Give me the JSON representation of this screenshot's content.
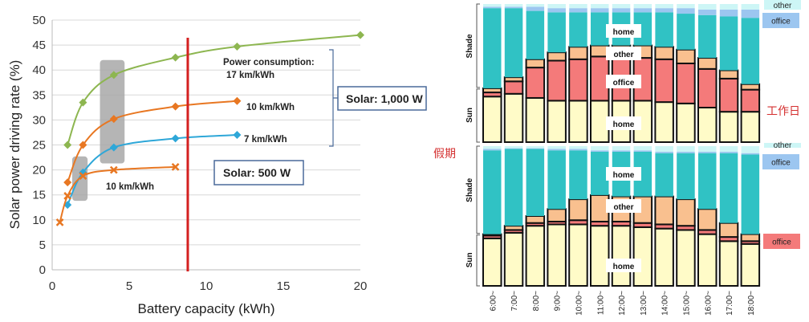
{
  "chart_data": [
    {
      "type": "line",
      "xlabel": "Battery capacity (kWh)",
      "ylabel": "Solar power driving rate (%)",
      "xlim": [
        0,
        20
      ],
      "ylim": [
        0,
        50
      ],
      "xticks": [
        "0",
        "5",
        "10",
        "15",
        "20"
      ],
      "yticks": [
        "0",
        "5",
        "10",
        "15",
        "20",
        "25",
        "30",
        "35",
        "40",
        "45",
        "50"
      ],
      "grid": "horizontal",
      "series": [
        {
          "name": "17 km/kWh",
          "color": "#8DB650",
          "marker": "diamond",
          "x": [
            1,
            2,
            4,
            8,
            12,
            20
          ],
          "y": [
            25,
            33.5,
            39,
            42.5,
            44.7,
            47
          ]
        },
        {
          "name": "10 km/kWh",
          "color": "#E87722",
          "marker": "diamond",
          "x": [
            1,
            2,
            4,
            8,
            12
          ],
          "y": [
            17.5,
            25,
            30.2,
            32.7,
            33.8
          ]
        },
        {
          "name": "7 km/kWh",
          "color": "#2EA7D8",
          "marker": "diamond",
          "x": [
            1,
            2,
            4,
            8,
            12
          ],
          "y": [
            13,
            19.5,
            24.5,
            26.3,
            27
          ]
        },
        {
          "name": "10 km/kWh",
          "color": "#E87722",
          "marker": "x",
          "x": [
            0.5,
            1,
            2,
            4,
            8
          ],
          "y": [
            9.5,
            14.8,
            18.8,
            20,
            20.6
          ]
        }
      ],
      "vline": {
        "x": 8.8,
        "color": "#D42020"
      },
      "highlights": [
        {
          "x": [
            1.3,
            2.3
          ],
          "y": [
            13.8,
            22.7
          ]
        },
        {
          "x": [
            3.1,
            4.7
          ],
          "y": [
            21.3,
            42
          ]
        }
      ],
      "annotations": {
        "power_consumption": "Power consumption:",
        "label_17": "17 km/kWh",
        "label_10_high": "10 km/kWh",
        "label_7": "7 km/kWh",
        "label_10_low": "10 km/kWh",
        "solar_1000": "Solar: 1,000 W",
        "solar_500": "Solar: 500 W"
      }
    },
    {
      "type": "bar",
      "stacked": true,
      "categories": [
        "6:00~",
        "7:00~",
        "8:00~",
        "9:00~",
        "10:00~",
        "11:00~",
        "12:00~",
        "13:00~",
        "14:00~",
        "15:00~",
        "16:00~",
        "17:00~",
        "18:00~"
      ],
      "segments": [
        "Sun home",
        "Sun office",
        "Sun other",
        "Shade home",
        "Shade office",
        "Shade other"
      ],
      "colors": [
        "#FFFBC8",
        "#F47A7A",
        "#F9C08F",
        "#30C2C4",
        "#9CC6F0",
        "#CDF6F6"
      ],
      "axis_labels": {
        "shade": "Shade",
        "sun": "Sun"
      },
      "inner_labels": {
        "home_shade": "home",
        "other": "other",
        "office": "office",
        "home_sun": "home"
      },
      "panels": [
        {
          "name": "工作日",
          "legend": {
            "other": "other",
            "office": "office"
          },
          "values": [
            [
              33,
              3,
              3,
              58,
              1,
              2
            ],
            [
              35,
              9,
              3,
              50,
              1,
              2
            ],
            [
              32,
              22,
              6,
              35,
              3,
              2
            ],
            [
              30,
              29,
              6,
              29,
              3,
              3
            ],
            [
              30,
              30,
              9,
              25,
              3,
              3
            ],
            [
              30,
              32,
              8,
              24,
              3,
              3
            ],
            [
              30,
              32,
              8,
              24,
              3,
              3
            ],
            [
              30,
              31,
              9,
              24,
              3,
              3
            ],
            [
              29,
              31,
              9,
              25,
              3,
              3
            ],
            [
              28,
              29,
              10,
              26,
              4,
              3
            ],
            [
              25,
              28,
              8,
              31,
              4,
              4
            ],
            [
              22,
              24,
              6,
              39,
              5,
              4
            ],
            [
              22,
              16,
              4,
              48,
              6,
              4
            ]
          ]
        },
        {
          "name": "假期",
          "legend": {
            "other": "other",
            "office": "office",
            "office_sun": "office"
          },
          "values": [
            [
              34,
              2,
              1,
              60,
              1,
              2
            ],
            [
              38,
              2,
              3,
              55,
              0.5,
              1.5
            ],
            [
              43,
              2,
              5,
              48,
              0.5,
              1.5
            ],
            [
              44,
              2,
              9,
              42,
              1,
              2
            ],
            [
              44,
              3,
              15,
              35,
              1,
              2
            ],
            [
              43,
              3,
              19,
              31,
              1,
              3
            ],
            [
              43,
              3,
              18,
              32,
              1,
              3
            ],
            [
              42,
              3,
              19,
              32,
              1,
              3
            ],
            [
              41,
              3,
              20,
              31,
              1,
              4
            ],
            [
              40,
              3,
              19,
              33,
              1,
              4
            ],
            [
              37,
              3,
              15,
              40,
              1,
              4
            ],
            [
              32,
              3,
              10,
              50,
              1,
              4
            ],
            [
              30,
              2,
              5,
              57,
              1,
              5
            ]
          ]
        }
      ]
    }
  ]
}
